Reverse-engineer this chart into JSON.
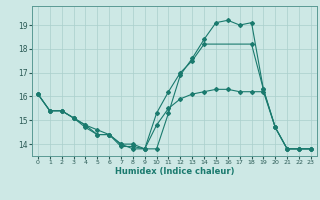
{
  "xlabel": "Humidex (Indice chaleur)",
  "xlim": [
    -0.5,
    23.5
  ],
  "ylim": [
    13.5,
    19.8
  ],
  "yticks": [
    14,
    15,
    16,
    17,
    18,
    19
  ],
  "xticks": [
    0,
    1,
    2,
    3,
    4,
    5,
    6,
    7,
    8,
    9,
    10,
    11,
    12,
    13,
    14,
    15,
    16,
    17,
    18,
    19,
    20,
    21,
    22,
    23
  ],
  "bg_color": "#cde8e5",
  "grid_color": "#aacfcc",
  "line_color": "#1a7a6e",
  "line1_x": [
    0,
    1,
    2,
    3,
    4,
    5,
    6,
    7,
    8,
    9,
    10,
    11,
    12,
    13,
    14,
    15,
    16,
    17,
    18,
    19,
    20,
    21,
    22,
    23
  ],
  "line1_y": [
    16.1,
    15.4,
    15.4,
    15.1,
    14.7,
    14.4,
    14.4,
    13.9,
    13.9,
    13.8,
    13.8,
    15.3,
    16.9,
    17.6,
    18.4,
    19.1,
    19.2,
    19.0,
    19.1,
    16.3,
    14.7,
    13.8,
    13.8,
    13.8
  ],
  "line2_x": [
    0,
    1,
    2,
    3,
    4,
    5,
    6,
    7,
    8,
    9,
    10,
    11,
    12,
    13,
    14,
    18,
    19,
    20,
    21,
    22,
    23
  ],
  "line2_y": [
    16.1,
    15.4,
    15.4,
    15.1,
    14.8,
    14.6,
    14.4,
    14.0,
    14.0,
    13.8,
    15.3,
    16.2,
    17.0,
    17.5,
    18.2,
    18.2,
    16.3,
    14.7,
    13.8,
    13.8,
    13.8
  ],
  "line3_x": [
    0,
    1,
    2,
    3,
    4,
    5,
    6,
    7,
    8,
    9,
    10,
    11,
    12,
    13,
    14,
    15,
    16,
    17,
    18,
    19,
    20,
    21,
    22,
    23
  ],
  "line3_y": [
    16.1,
    15.4,
    15.4,
    15.1,
    14.8,
    14.4,
    14.4,
    14.0,
    13.8,
    13.8,
    14.8,
    15.5,
    15.9,
    16.1,
    16.2,
    16.3,
    16.3,
    16.2,
    16.2,
    16.2,
    14.7,
    13.8,
    13.8,
    13.8
  ]
}
